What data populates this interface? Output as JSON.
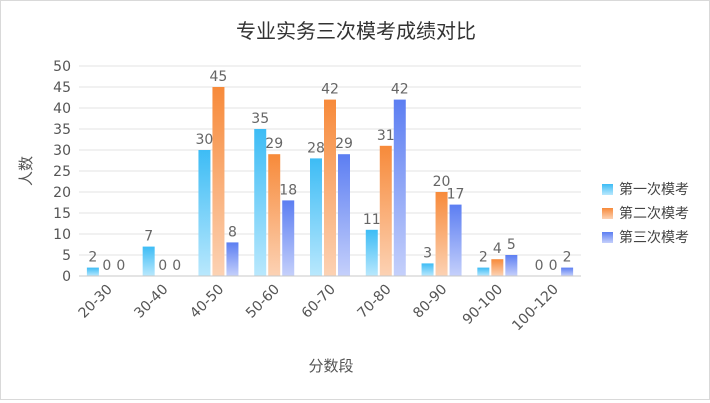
{
  "chart_data": {
    "type": "bar",
    "title": "专业实务三次模考成绩对比",
    "xlabel": "分数段",
    "ylabel": "人数",
    "ylim": [
      0,
      50
    ],
    "yticks": [
      0,
      5,
      10,
      15,
      20,
      25,
      30,
      35,
      40,
      45,
      50
    ],
    "grid": true,
    "legend_position": "right",
    "categories": [
      "20-30",
      "30-40",
      "40-50",
      "50-60",
      "60-70",
      "70-80",
      "80-90",
      "90-100",
      "100-120"
    ],
    "series": [
      {
        "name": "第一次模考",
        "values": [
          2,
          7,
          30,
          35,
          28,
          11,
          3,
          2,
          0
        ],
        "color_top": "#3dbcf5",
        "color_bottom": "#b9e8fd"
      },
      {
        "name": "第二次模考",
        "values": [
          0,
          0,
          45,
          29,
          42,
          31,
          20,
          4,
          0
        ],
        "color_top": "#f78a3a",
        "color_bottom": "#fcd2b4"
      },
      {
        "name": "第三次模考",
        "values": [
          0,
          0,
          8,
          18,
          29,
          42,
          17,
          5,
          2
        ],
        "color_top": "#5c7ef2",
        "color_bottom": "#c5d0fb"
      }
    ]
  }
}
